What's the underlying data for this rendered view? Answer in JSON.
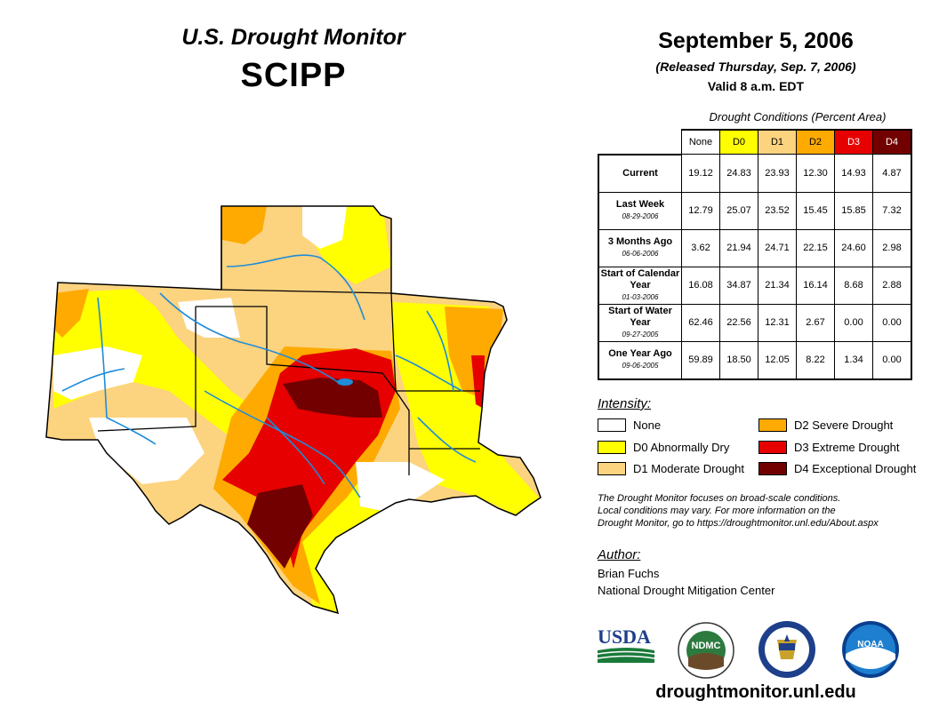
{
  "header": {
    "title": "U.S. Drought Monitor",
    "region": "SCIPP",
    "date": "September 5, 2006",
    "released": "(Released Thursday, Sep. 7, 2006)",
    "valid": "Valid 8 a.m. EDT"
  },
  "table": {
    "caption": "Drought Conditions (Percent Area)",
    "columns": [
      "None",
      "D0",
      "D1",
      "D2",
      "D3",
      "D4"
    ],
    "column_colors": [
      "#ffffff",
      "#ffff00",
      "#fcd37f",
      "#ffaa00",
      "#e60000",
      "#730000"
    ],
    "rows": [
      {
        "label": "Current",
        "sub": "",
        "values": [
          "19.12",
          "24.83",
          "23.93",
          "12.30",
          "14.93",
          "4.87"
        ]
      },
      {
        "label": "Last Week",
        "sub": "08-29-2006",
        "values": [
          "12.79",
          "25.07",
          "23.52",
          "15.45",
          "15.85",
          "7.32"
        ]
      },
      {
        "label": "3 Months Ago",
        "sub": "06-06-2006",
        "values": [
          "3.62",
          "21.94",
          "24.71",
          "22.15",
          "24.60",
          "2.98"
        ]
      },
      {
        "label": "Start of Calendar Year",
        "sub": "01-03-2006",
        "values": [
          "16.08",
          "34.87",
          "21.34",
          "16.14",
          "8.68",
          "2.88"
        ]
      },
      {
        "label": "Start of Water Year",
        "sub": "09-27-2005",
        "values": [
          "62.46",
          "22.56",
          "12.31",
          "2.67",
          "0.00",
          "0.00"
        ]
      },
      {
        "label": "One Year Ago",
        "sub": "09-06-2005",
        "values": [
          "59.89",
          "18.50",
          "12.05",
          "8.22",
          "1.34",
          "0.00"
        ]
      }
    ]
  },
  "legend": {
    "title": "Intensity:",
    "items": [
      {
        "label": "None",
        "color": "#ffffff"
      },
      {
        "label": "D0 Abnormally Dry",
        "color": "#ffff00"
      },
      {
        "label": "D1 Moderate Drought",
        "color": "#fcd37f"
      },
      {
        "label": "D2 Severe Drought",
        "color": "#ffaa00"
      },
      {
        "label": "D3 Extreme Drought",
        "color": "#e60000"
      },
      {
        "label": "D4 Exceptional Drought",
        "color": "#730000"
      }
    ]
  },
  "note": {
    "line1": "The Drought Monitor focuses on broad-scale conditions.",
    "line2": "Local conditions may vary. For more information on the",
    "line3": "Drought Monitor, go to https://droughtmonitor.unl.edu/About.aspx"
  },
  "author": {
    "title": "Author:",
    "name": "Brian Fuchs",
    "org": "National Drought Mitigation Center"
  },
  "logos": {
    "usda": "USDA",
    "ndmc": "NDMC",
    "noaa": "NOAA"
  },
  "footer": {
    "url": "droughtmonitor.unl.edu"
  }
}
